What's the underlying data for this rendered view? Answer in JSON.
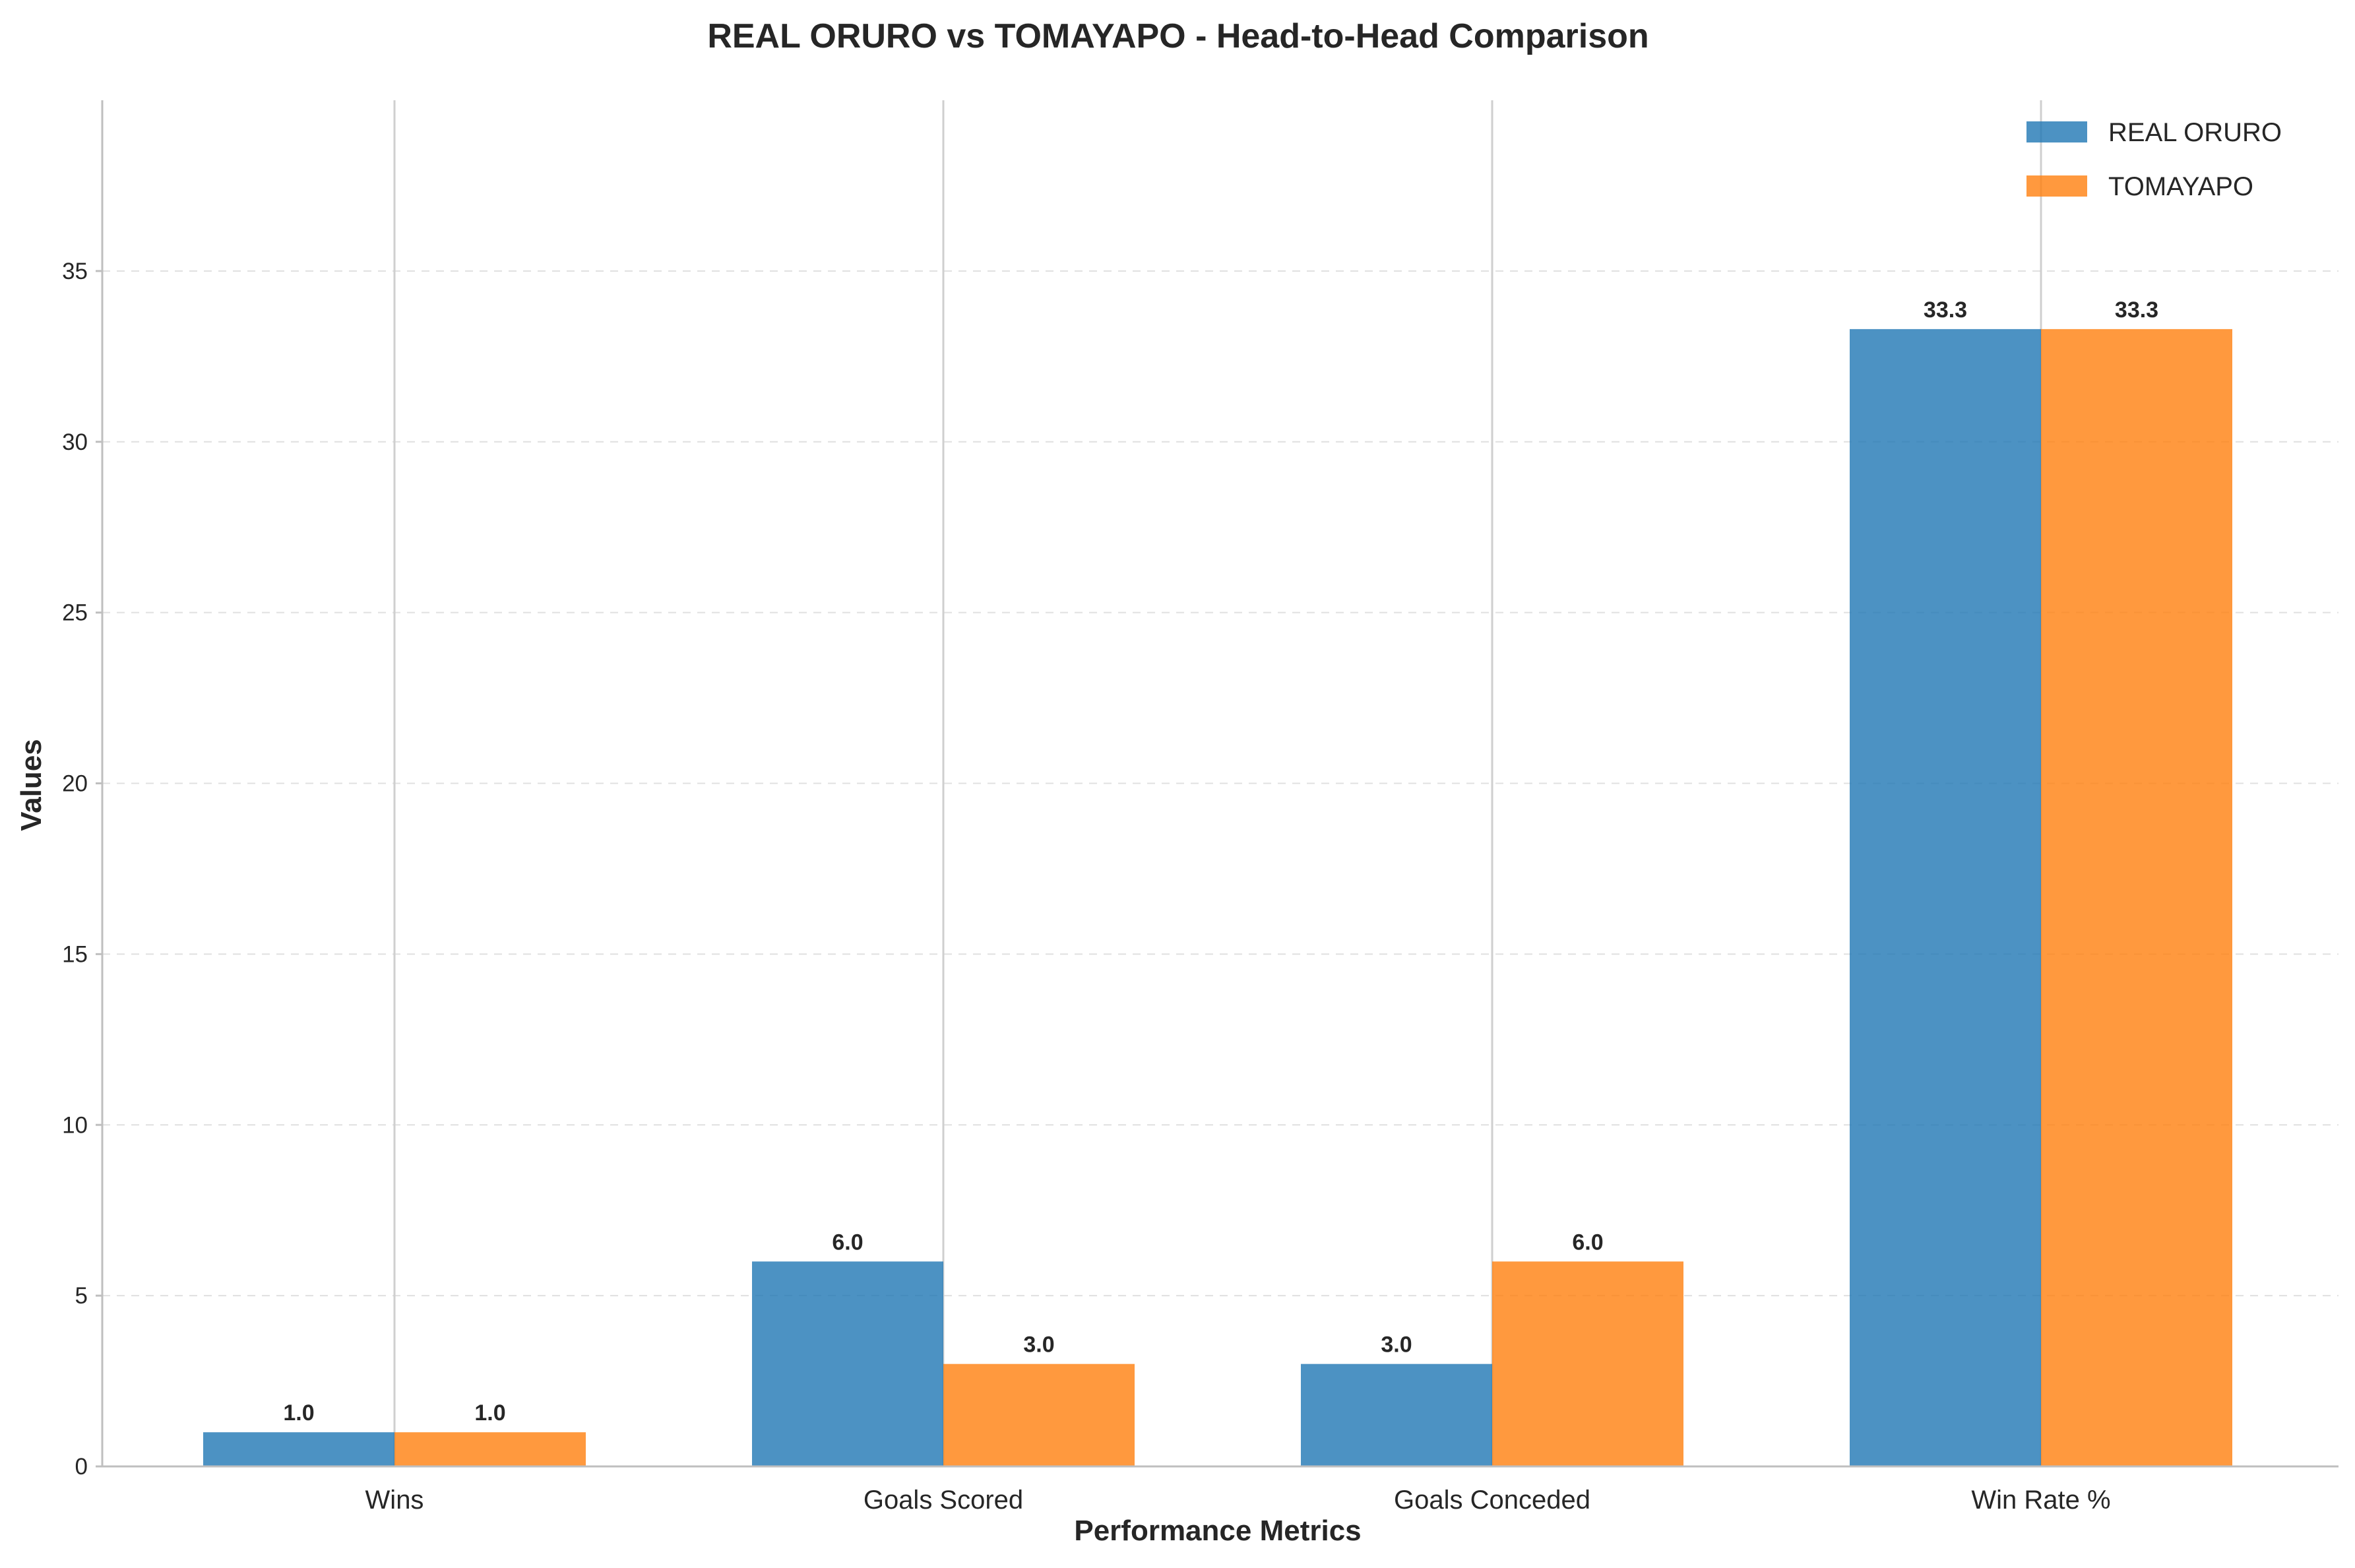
{
  "colors": {
    "real_oruro": "#1f77b4",
    "tomayapo": "#ff7f0e",
    "grid": "#e0e0e0",
    "axis": "#bfbfbf",
    "text": "#262626"
  },
  "chart_data": {
    "type": "bar",
    "title": "REAL ORURO vs TOMAYAPO - Head-to-Head Comparison",
    "xlabel": "Performance Metrics",
    "ylabel": "Values",
    "categories": [
      "Wins",
      "Goals Scored",
      "Goals Conceded",
      "Win Rate %"
    ],
    "series": [
      {
        "name": "REAL ORURO",
        "values": [
          1.0,
          6.0,
          3.0,
          33.3
        ],
        "labels": [
          "1.0",
          "6.0",
          "3.0",
          "33.3"
        ],
        "color": "#1f77b4"
      },
      {
        "name": "TOMAYAPO",
        "values": [
          1.0,
          3.0,
          6.0,
          33.3
        ],
        "labels": [
          "1.0",
          "3.0",
          "6.0",
          "33.3"
        ],
        "color": "#ff7f0e"
      }
    ],
    "ylim": [
      0,
      40
    ],
    "yticks": [
      0,
      5,
      10,
      15,
      20,
      25,
      30,
      35
    ],
    "ytick_labels": [
      "0",
      "5",
      "10",
      "15",
      "20",
      "25",
      "30",
      "35"
    ],
    "grid": "y-dashed",
    "legend": "top-right"
  }
}
